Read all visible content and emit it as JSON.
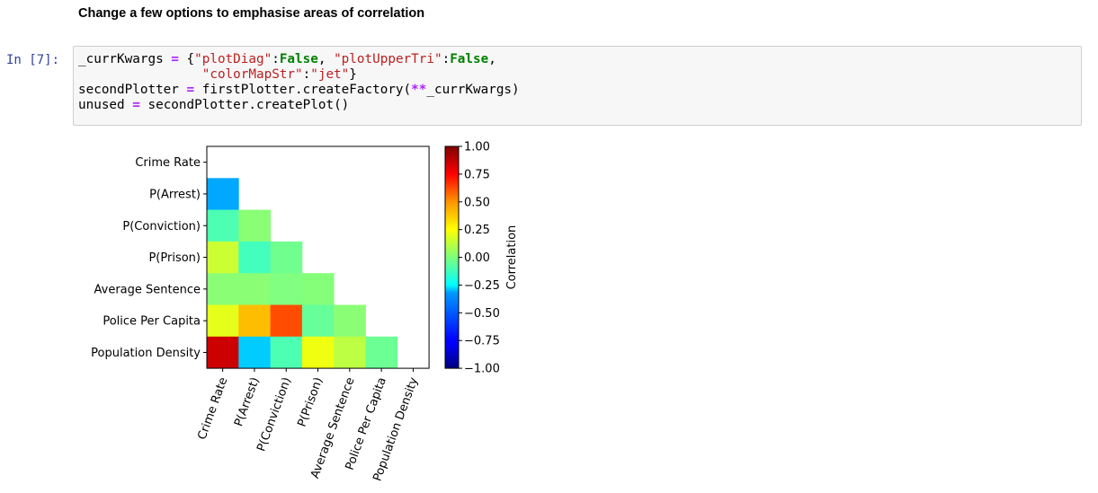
{
  "markdown": {
    "heading": "Change a few options to emphasise areas of correlation"
  },
  "cell": {
    "prompt": "In [7]:",
    "code": {
      "l1_var": "_currKwargs",
      "l1_eq": " = ",
      "l1_brace": "{",
      "l1_key1": "\"plotDiag\"",
      "l1_colon1": ":",
      "l1_val1": "False",
      "l1_sep": ", ",
      "l1_key2": "\"plotUpperTri\"",
      "l1_colon2": ":",
      "l1_val2": "False",
      "l1_end": ",",
      "l2_indent": "                ",
      "l2_key": "\"colorMapStr\"",
      "l2_colon": ":",
      "l2_val": "\"jet\"",
      "l2_end": "}",
      "l3_a": "secondPlotter",
      "l3_eq": " = ",
      "l3_b": "firstPlotter.createFactory(",
      "l3_op": "**",
      "l3_c": "_currKwargs)",
      "l4_a": "unused",
      "l4_eq": " = ",
      "l4_b": "secondPlotter.createPlot()"
    }
  },
  "chart_data": {
    "type": "heatmap",
    "colormap": "jet",
    "row_labels": [
      "Crime Rate",
      "P(Arrest)",
      "P(Conviction)",
      "P(Prison)",
      "Average Sentence",
      "Police Per Capita",
      "Population Density"
    ],
    "col_labels": [
      "Crime Rate",
      "P(Arrest)",
      "P(Conviction)",
      "P(Prison)",
      "Average Sentence",
      "Police Per Capita",
      "Population Density"
    ],
    "values": [
      [
        null,
        null,
        null,
        null,
        null,
        null,
        null
      ],
      [
        -0.42,
        null,
        null,
        null,
        null,
        null,
        null
      ],
      [
        -0.1,
        0.02,
        null,
        null,
        null,
        null,
        null
      ],
      [
        0.15,
        -0.12,
        -0.03,
        null,
        null,
        null,
        null
      ],
      [
        0.02,
        0.02,
        0.0,
        0.01,
        null,
        null,
        null
      ],
      [
        0.2,
        0.38,
        0.6,
        -0.05,
        0.02,
        null,
        null
      ],
      [
        0.85,
        -0.35,
        -0.1,
        0.22,
        0.12,
        -0.04,
        null
      ]
    ],
    "vmin": -1.0,
    "vmax": 1.0,
    "colorbar": {
      "label": "Correlation",
      "ticks": [
        1.0,
        0.75,
        0.5,
        0.25,
        0.0,
        -0.25,
        -0.5,
        -0.75,
        -1.0
      ],
      "tick_labels": [
        "1.00",
        "0.75",
        "0.50",
        "0.25",
        "0.00",
        "−0.25",
        "−0.50",
        "−0.75",
        "−1.00"
      ]
    }
  }
}
